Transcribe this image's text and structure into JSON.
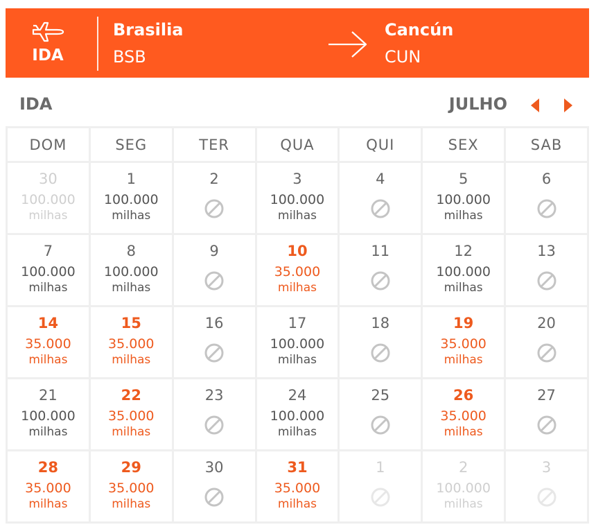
{
  "header": {
    "direction_label": "IDA",
    "origin": {
      "name": "Brasilia",
      "code": "BSB"
    },
    "destination": {
      "name": "Cancún",
      "code": "CUN"
    },
    "color": "#ff5a1f"
  },
  "calendar": {
    "title": "IDA",
    "month": "JULHO",
    "accent_color": "#ee5a1e",
    "weekdays": [
      "DOM",
      "SEG",
      "TER",
      "QUA",
      "QUI",
      "SEX",
      "SAB"
    ],
    "weeks": [
      [
        {
          "day": "30",
          "price": "100.000",
          "unit": "milhas",
          "status": "other"
        },
        {
          "day": "1",
          "price": "100.000",
          "unit": "milhas",
          "status": "normal"
        },
        {
          "day": "2",
          "status": "unavailable"
        },
        {
          "day": "3",
          "price": "100.000",
          "unit": "milhas",
          "status": "normal"
        },
        {
          "day": "4",
          "status": "unavailable"
        },
        {
          "day": "5",
          "price": "100.000",
          "unit": "milhas",
          "status": "normal"
        },
        {
          "day": "6",
          "status": "unavailable"
        }
      ],
      [
        {
          "day": "7",
          "price": "100.000",
          "unit": "milhas",
          "status": "normal"
        },
        {
          "day": "8",
          "price": "100.000",
          "unit": "milhas",
          "status": "normal"
        },
        {
          "day": "9",
          "status": "unavailable"
        },
        {
          "day": "10",
          "price": "35.000",
          "unit": "milhas",
          "status": "deal"
        },
        {
          "day": "11",
          "status": "unavailable"
        },
        {
          "day": "12",
          "price": "100.000",
          "unit": "milhas",
          "status": "normal"
        },
        {
          "day": "13",
          "status": "unavailable"
        }
      ],
      [
        {
          "day": "14",
          "price": "35.000",
          "unit": "milhas",
          "status": "deal"
        },
        {
          "day": "15",
          "price": "35.000",
          "unit": "milhas",
          "status": "deal"
        },
        {
          "day": "16",
          "status": "unavailable"
        },
        {
          "day": "17",
          "price": "100.000",
          "unit": "milhas",
          "status": "normal"
        },
        {
          "day": "18",
          "status": "unavailable"
        },
        {
          "day": "19",
          "price": "35.000",
          "unit": "milhas",
          "status": "deal"
        },
        {
          "day": "20",
          "status": "unavailable"
        }
      ],
      [
        {
          "day": "21",
          "price": "100.000",
          "unit": "milhas",
          "status": "normal"
        },
        {
          "day": "22",
          "price": "35.000",
          "unit": "milhas",
          "status": "deal"
        },
        {
          "day": "23",
          "status": "unavailable"
        },
        {
          "day": "24",
          "price": "100.000",
          "unit": "milhas",
          "status": "normal"
        },
        {
          "day": "25",
          "status": "unavailable"
        },
        {
          "day": "26",
          "price": "35.000",
          "unit": "milhas",
          "status": "deal"
        },
        {
          "day": "27",
          "status": "unavailable"
        }
      ],
      [
        {
          "day": "28",
          "price": "35.000",
          "unit": "milhas",
          "status": "deal"
        },
        {
          "day": "29",
          "price": "35.000",
          "unit": "milhas",
          "status": "deal"
        },
        {
          "day": "30",
          "status": "unavailable"
        },
        {
          "day": "31",
          "price": "35.000",
          "unit": "milhas",
          "status": "deal"
        },
        {
          "day": "1",
          "status": "other-unavailable"
        },
        {
          "day": "2",
          "price": "100.000",
          "unit": "milhas",
          "status": "other"
        },
        {
          "day": "3",
          "status": "other-unavailable"
        }
      ]
    ]
  }
}
